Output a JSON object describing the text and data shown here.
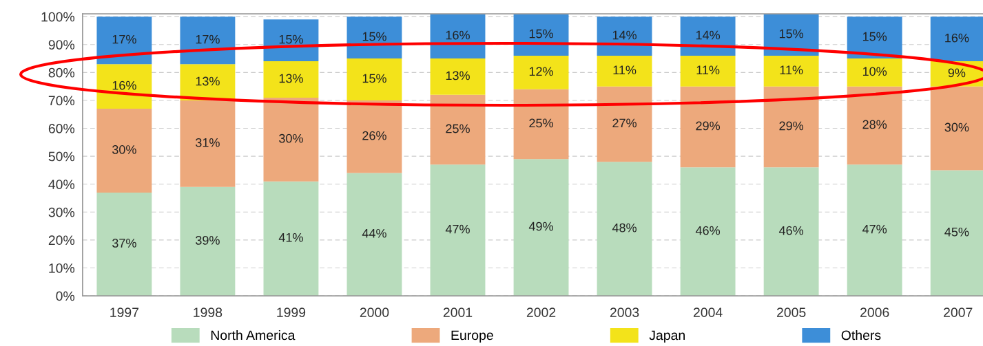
{
  "chart_data": {
    "type": "bar",
    "stacked": true,
    "categories": [
      "1997",
      "1998",
      "1999",
      "2000",
      "2001",
      "2002",
      "2003",
      "2004",
      "2005",
      "2006",
      "2007"
    ],
    "series": [
      {
        "name": "North America",
        "color": "#b8dcbc",
        "values": [
          37,
          39,
          41,
          44,
          47,
          49,
          48,
          46,
          46,
          47,
          45
        ],
        "value_labels": [
          "37%",
          "39%",
          "41%",
          "44%",
          "47%",
          "49%",
          "48%",
          "46%",
          "46%",
          "47%",
          "45%"
        ]
      },
      {
        "name": "Europe",
        "color": "#eda97c",
        "values": [
          30,
          31,
          30,
          26,
          25,
          25,
          27,
          29,
          29,
          28,
          30
        ],
        "value_labels": [
          "30%",
          "31%",
          "30%",
          "26%",
          "25%",
          "25%",
          "27%",
          "29%",
          "29%",
          "28%",
          "30%"
        ]
      },
      {
        "name": "Japan",
        "color": "#f3e31a",
        "values": [
          16,
          13,
          13,
          15,
          13,
          12,
          11,
          11,
          11,
          10,
          9
        ],
        "value_labels": [
          "16%",
          "13%",
          "13%",
          "15%",
          "13%",
          "12%",
          "11%",
          "11%",
          "11%",
          "10%",
          "9%"
        ]
      },
      {
        "name": "Others",
        "color": "#3d8ed8",
        "values": [
          17,
          17,
          15,
          15,
          16,
          15,
          14,
          14,
          15,
          15,
          16
        ],
        "value_labels": [
          "17%",
          "17%",
          "15%",
          "15%",
          "16%",
          "15%",
          "14%",
          "14%",
          "15%",
          "15%",
          "16%"
        ]
      }
    ],
    "ylim": [
      0,
      101
    ],
    "yticks": [
      {
        "value": 0,
        "label": "0%"
      },
      {
        "value": 10,
        "label": "10%"
      },
      {
        "value": 20,
        "label": "20%"
      },
      {
        "value": 30,
        "label": "30%"
      },
      {
        "value": 40,
        "label": "40%"
      },
      {
        "value": 50,
        "label": "50%"
      },
      {
        "value": 60,
        "label": "60%"
      },
      {
        "value": 70,
        "label": "70%"
      },
      {
        "value": 80,
        "label": "80%"
      },
      {
        "value": 90,
        "label": "90%"
      },
      {
        "value": 100,
        "label": "100%"
      }
    ],
    "grid": "y",
    "legend": "bottom"
  }
}
